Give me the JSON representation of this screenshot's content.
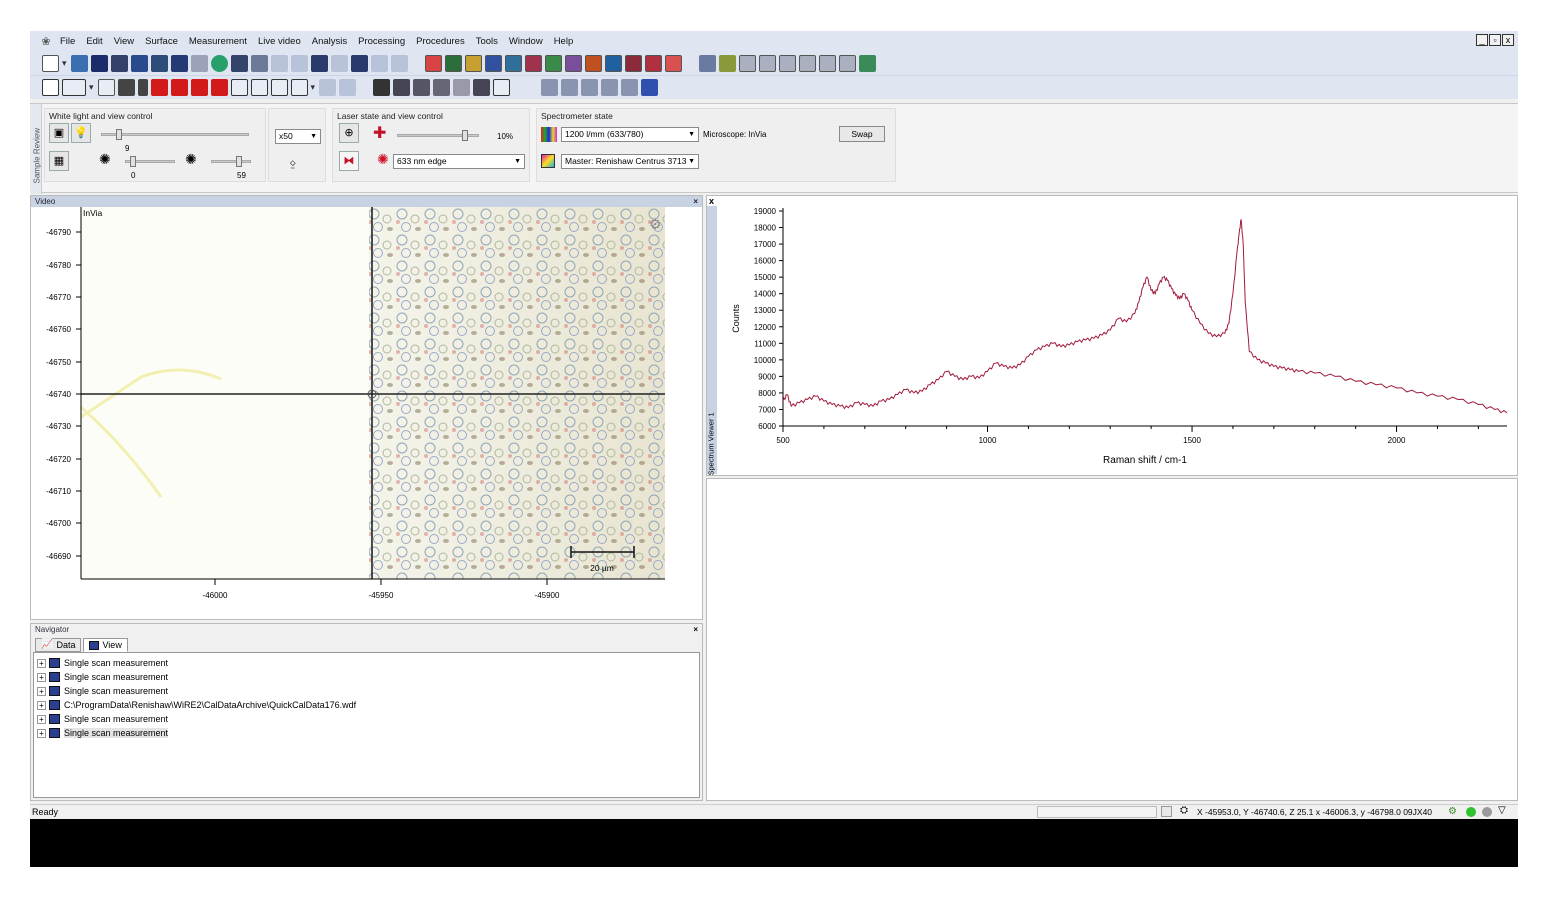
{
  "menu": [
    "File",
    "Edit",
    "View",
    "Surface",
    "Measurement",
    "Live video",
    "Analysis",
    "Processing",
    "Procedures",
    "Tools",
    "Window",
    "Help"
  ],
  "window_controls": [
    "_",
    "▫",
    "x"
  ],
  "colors": {
    "spectrum_line": "#a01b3a",
    "menubar": "#dfe6f2",
    "pane_header": "#c7d2e3"
  },
  "control_bar": {
    "side_tab": "Sample Review",
    "white_light": {
      "title": "White light and view control",
      "objective": "x50",
      "slider_a_value": "9",
      "slider_a_min": "0",
      "slider_b_value": "59"
    },
    "laser": {
      "title": "Laser state and view control",
      "power": "10%",
      "laser_select": "633 nm edge"
    },
    "spectrometer": {
      "title": "Spectrometer state",
      "grating": "1200 l/mm (633/780)",
      "microscope": "Microscope: InVia",
      "master": "Master: Renishaw Centrus 3713",
      "swap_label": "Swap"
    }
  },
  "video": {
    "header": "Video",
    "overlay_label": "InVia",
    "scale_bar": "20 µm",
    "y_ticks": [
      "-46790",
      "-46780",
      "-46770",
      "-46760",
      "-46750",
      "-46740",
      "-46730",
      "-46720",
      "-46710",
      "-46700",
      "-46690"
    ],
    "x_ticks": [
      "-46000",
      "-45950",
      "-45900"
    ]
  },
  "spectrum": {
    "side_label": "Spectrum Viewer 1",
    "close_label": "x"
  },
  "chart_data": {
    "type": "line",
    "xlabel": "Raman shift / cm-1",
    "ylabel": "Counts",
    "xlim": [
      500,
      2270
    ],
    "ylim": [
      6000,
      19000
    ],
    "x_ticks": [
      500,
      1000,
      1500,
      2000
    ],
    "y_ticks": [
      6000,
      7000,
      8000,
      9000,
      10000,
      11000,
      12000,
      13000,
      14000,
      15000,
      16000,
      17000,
      18000,
      19000
    ],
    "grid": false,
    "series": [
      {
        "x": [
          500,
          510,
          520,
          540,
          560,
          580,
          600,
          620,
          640,
          660,
          680,
          700,
          720,
          740,
          760,
          780,
          800,
          820,
          840,
          860,
          880,
          900,
          920,
          940,
          960,
          980,
          1000,
          1020,
          1040,
          1060,
          1080,
          1100,
          1120,
          1140,
          1160,
          1180,
          1200,
          1220,
          1240,
          1260,
          1280,
          1300,
          1320,
          1340,
          1360,
          1370,
          1380,
          1390,
          1400,
          1410,
          1420,
          1430,
          1440,
          1450,
          1460,
          1470,
          1480,
          1490,
          1500,
          1520,
          1540,
          1560,
          1580,
          1590,
          1600,
          1610,
          1615,
          1620,
          1625,
          1630,
          1640,
          1660,
          1680,
          1700,
          1720,
          1740,
          1760,
          1800,
          1850,
          1900,
          1950,
          2000,
          2050,
          2100,
          2150,
          2200,
          2240,
          2270
        ],
        "y": [
          7500,
          7900,
          7200,
          7400,
          7600,
          7800,
          7500,
          7300,
          7200,
          7100,
          7400,
          7300,
          7200,
          7500,
          7600,
          7900,
          8200,
          8000,
          8100,
          8500,
          8800,
          9300,
          9000,
          8800,
          9000,
          8900,
          9300,
          9800,
          9600,
          9500,
          9700,
          10200,
          10600,
          10800,
          11000,
          10800,
          10900,
          11100,
          11200,
          11300,
          11500,
          11800,
          12500,
          12300,
          12800,
          13500,
          14400,
          15000,
          14200,
          14000,
          14600,
          15000,
          14800,
          14300,
          13900,
          13700,
          14000,
          13600,
          13000,
          12200,
          11600,
          11400,
          11600,
          12200,
          14000,
          16500,
          17600,
          18500,
          17000,
          13500,
          10500,
          10000,
          9800,
          9600,
          9500,
          9400,
          9300,
          9200,
          9000,
          8700,
          8500,
          8300,
          8000,
          7800,
          7600,
          7300,
          7000,
          6800
        ]
      }
    ]
  },
  "navigator": {
    "header": "Navigator",
    "tabs": [
      "Data",
      "View"
    ],
    "items": [
      "Single scan measurement",
      "Single scan measurement",
      "Single scan measurement",
      "C:\\ProgramData\\Renishaw\\WiRE2\\CalDataArchive\\QuickCalData176.wdf",
      "Single scan measurement",
      "Single scan measurement"
    ]
  },
  "status": {
    "ready": "Ready",
    "coords": "X -45953.0, Y -46740.6, Z 25.1  x -46006.3, y -46798.0  09JX40"
  }
}
